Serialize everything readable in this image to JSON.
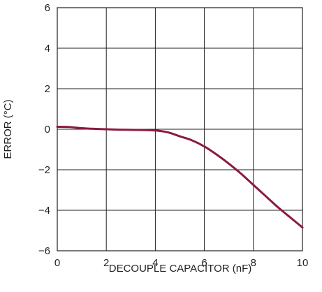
{
  "chart_data": {
    "type": "line",
    "title": "",
    "xlabel": "DECOUPLE CAPACITOR (nF)",
    "ylabel": "ERROR (°C)",
    "xlim": [
      0,
      10
    ],
    "ylim": [
      -6,
      6
    ],
    "grid": true,
    "x_ticks": [
      "0",
      "2",
      "4",
      "6",
      "8",
      "10"
    ],
    "y_ticks": [
      "6",
      "4",
      "2",
      "0",
      "−2",
      "−4",
      "−6"
    ],
    "x_tick_values": [
      0,
      2,
      4,
      6,
      8,
      10
    ],
    "y_tick_values": [
      6,
      4,
      2,
      0,
      -2,
      -4,
      -6
    ],
    "series": [
      {
        "color": "#8b1a3e",
        "x": [
          0,
          0.5,
          1,
          1.5,
          2,
          2.5,
          3,
          3.5,
          4,
          4.5,
          5,
          5.5,
          6,
          6.5,
          7,
          7.5,
          8,
          8.5,
          9,
          9.5,
          10
        ],
        "y": [
          0.12,
          0.11,
          0.05,
          0.02,
          0.0,
          -0.02,
          -0.03,
          -0.04,
          -0.06,
          -0.15,
          -0.35,
          -0.55,
          -0.85,
          -1.25,
          -1.7,
          -2.2,
          -2.75,
          -3.3,
          -3.85,
          -4.35,
          -4.85
        ]
      }
    ]
  }
}
